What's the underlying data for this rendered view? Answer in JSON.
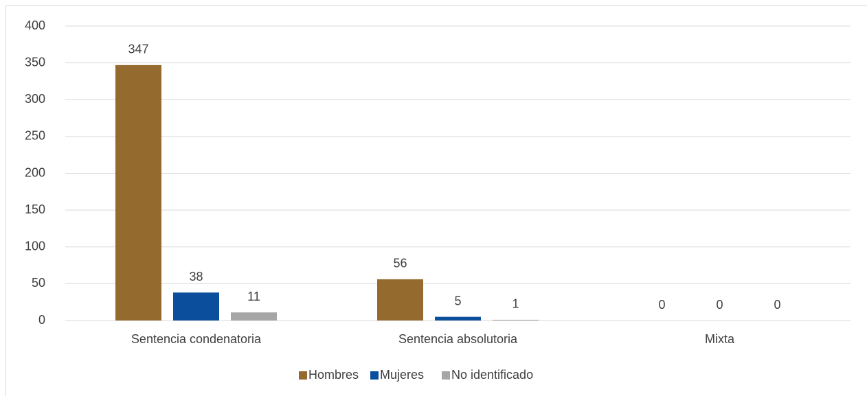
{
  "chart_data": {
    "type": "bar",
    "categories": [
      "Sentencia condenatoria",
      "Sentencia absolutoria",
      "Mixta"
    ],
    "series": [
      {
        "name": "Hombres",
        "color": "#946a2e",
        "values": [
          347,
          56,
          0
        ]
      },
      {
        "name": "Mujeres",
        "color": "#0b4f9c",
        "values": [
          38,
          5,
          0
        ]
      },
      {
        "name": "No identificado",
        "color": "#a6a6a6",
        "values": [
          11,
          1,
          0
        ]
      }
    ],
    "ylim": [
      0,
      400
    ],
    "yticks": [
      0,
      50,
      100,
      150,
      200,
      250,
      300,
      350,
      400
    ],
    "grid": true,
    "legend": "bottom"
  }
}
